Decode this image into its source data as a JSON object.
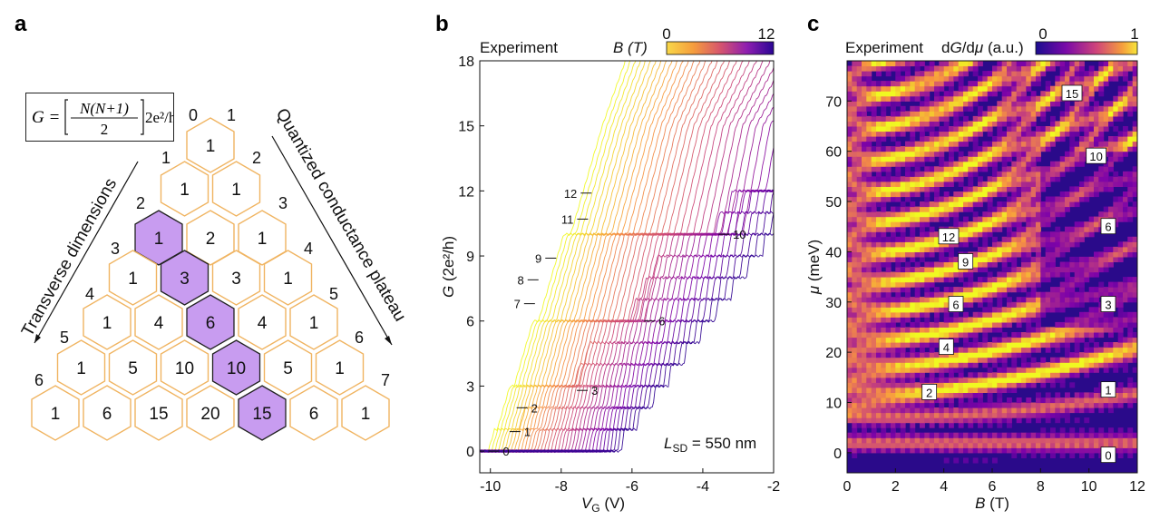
{
  "panel_a": {
    "letter": "a",
    "formula": {
      "lhs": "G =",
      "numerator": "N(N+1)",
      "denominator": "2",
      "suffix": "2e²/h"
    },
    "left_arrow_label": "Transverse dimensions",
    "right_arrow_label": "Quantized conductance plateau",
    "left_indices": [
      "0",
      "1",
      "2",
      "3",
      "4",
      "5",
      "6"
    ],
    "right_indices": [
      "1",
      "2",
      "3",
      "4",
      "5",
      "6",
      "7"
    ],
    "rows": [
      [
        "1"
      ],
      [
        "1",
        "1"
      ],
      [
        "1",
        "2",
        "1"
      ],
      [
        "1",
        "3",
        "3",
        "1"
      ],
      [
        "1",
        "4",
        "6",
        "4",
        "1"
      ],
      [
        "1",
        "5",
        "10",
        "10",
        "5",
        "1"
      ],
      [
        "1",
        "6",
        "15",
        "20",
        "15",
        "6",
        "1"
      ]
    ],
    "highlighted": [
      [
        2,
        0
      ],
      [
        3,
        1
      ],
      [
        4,
        2
      ],
      [
        5,
        3
      ],
      [
        6,
        4
      ]
    ],
    "colors": {
      "outline": "#f0b461",
      "highlight_fill": "#c89cf0",
      "highlight_stroke": "#222222"
    }
  },
  "chart_data": [
    {
      "type": "line",
      "panel": "b",
      "title": "Experiment",
      "xlabel": "V_G (V)",
      "ylabel": "G (2e²/h)",
      "xlim": [
        -10.3,
        -2
      ],
      "ylim": [
        -1,
        18
      ],
      "xticks": [
        "-10",
        "-8",
        "-6",
        "-4",
        "-2"
      ],
      "yticks": [
        "0",
        "3",
        "6",
        "9",
        "12",
        "15",
        "18"
      ],
      "colorbar": {
        "label": "B (T)",
        "min": "0",
        "max": "12"
      },
      "annotation": "L_SD = 550 nm",
      "plateau_labels": [
        {
          "text": "0",
          "x": -9.7,
          "y": 0
        },
        {
          "text": "1",
          "x": -9.1,
          "y": 0.9
        },
        {
          "text": "2",
          "x": -8.9,
          "y": 2
        },
        {
          "text": "3",
          "x": -7.2,
          "y": 2.8
        },
        {
          "text": "6",
          "x": -5.3,
          "y": 6
        },
        {
          "text": "7",
          "x": -9.1,
          "y": 6.8
        },
        {
          "text": "8",
          "x": -9.0,
          "y": 7.9
        },
        {
          "text": "9",
          "x": -8.5,
          "y": 8.9
        },
        {
          "text": "10",
          "x": -3.2,
          "y": 10
        },
        {
          "text": "11",
          "x": -7.6,
          "y": 10.7
        },
        {
          "text": "12",
          "x": -7.5,
          "y": 11.9
        }
      ],
      "series_summary": {
        "count": 40,
        "field_range_T": [
          0,
          12
        ]
      }
    },
    {
      "type": "heatmap",
      "panel": "c",
      "title": "Experiment",
      "xlabel": "B (T)",
      "ylabel": "μ (meV)",
      "xlim": [
        0,
        12
      ],
      "ylim": [
        -4,
        78
      ],
      "xticks": [
        "0",
        "2",
        "4",
        "6",
        "8",
        "10",
        "12"
      ],
      "yticks": [
        "0",
        "10",
        "20",
        "30",
        "40",
        "50",
        "60",
        "70"
      ],
      "colorbar": {
        "label": "dG/dμ (a.u.)",
        "min": "0",
        "max": "1"
      },
      "box_labels": [
        {
          "text": "0",
          "x": 10.8,
          "y": -0.5
        },
        {
          "text": "1",
          "x": 10.8,
          "y": 12.5
        },
        {
          "text": "2",
          "x": 3.4,
          "y": 12
        },
        {
          "text": "3",
          "x": 10.8,
          "y": 29.5
        },
        {
          "text": "4",
          "x": 4.1,
          "y": 21
        },
        {
          "text": "6",
          "x": 4.5,
          "y": 29.5
        },
        {
          "text": "6",
          "x": 10.8,
          "y": 45
        },
        {
          "text": "9",
          "x": 4.9,
          "y": 38
        },
        {
          "text": "10",
          "x": 10.3,
          "y": 59
        },
        {
          "text": "12",
          "x": 4.2,
          "y": 43
        },
        {
          "text": "15",
          "x": 9.3,
          "y": 71.5
        }
      ]
    }
  ],
  "panel_b_letter": "b",
  "panel_c_letter": "c"
}
